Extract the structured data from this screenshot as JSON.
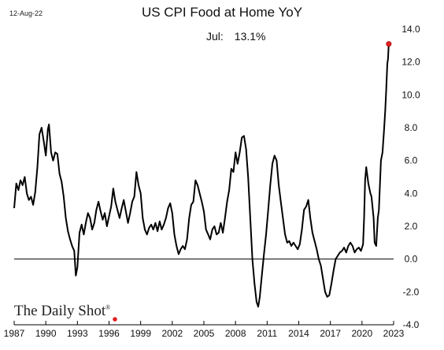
{
  "header": {
    "date": "12-Aug-22",
    "title": "US CPI Food at Home YoY"
  },
  "annotation": {
    "label": "Jul:",
    "value": "13.1%"
  },
  "branding": {
    "name": "The Daily Shot",
    "mark": "®"
  },
  "colors": {
    "line": "#000000",
    "latest_point": "#e02020",
    "zero_line": "#000000"
  },
  "chart_data": {
    "type": "line",
    "title": "US CPI Food at Home YoY",
    "xlabel": "",
    "ylabel": "",
    "xlim": [
      1987,
      2023
    ],
    "ylim": [
      -4.0,
      14.0
    ],
    "x_ticks": [
      "1987",
      "1990",
      "1993",
      "1996",
      "1999",
      "2002",
      "2005",
      "2008",
      "2011",
      "2014",
      "2017",
      "2020",
      "2023"
    ],
    "y_ticks": [
      "14.0",
      "12.0",
      "10.0",
      "8.0",
      "6.0",
      "4.0",
      "2.0",
      "0.0",
      "-2.0",
      "-4.0"
    ],
    "y_axis_position": "right",
    "grid": false,
    "reference_line": 0,
    "latest": {
      "x": 2022.54,
      "y": 13.1
    },
    "series": [
      {
        "values": [
          [
            1987.0,
            3.1
          ],
          [
            1987.2,
            4.6
          ],
          [
            1987.4,
            4.2
          ],
          [
            1987.6,
            4.8
          ],
          [
            1987.8,
            4.5
          ],
          [
            1988.0,
            5.0
          ],
          [
            1988.2,
            4.0
          ],
          [
            1988.4,
            3.6
          ],
          [
            1988.6,
            3.8
          ],
          [
            1988.8,
            3.3
          ],
          [
            1989.0,
            4.1
          ],
          [
            1989.2,
            5.6
          ],
          [
            1989.4,
            7.6
          ],
          [
            1989.6,
            8.0
          ],
          [
            1989.8,
            7.2
          ],
          [
            1990.0,
            6.3
          ],
          [
            1990.2,
            7.9
          ],
          [
            1990.3,
            8.2
          ],
          [
            1990.5,
            6.5
          ],
          [
            1990.7,
            6.0
          ],
          [
            1990.9,
            6.5
          ],
          [
            1991.1,
            6.4
          ],
          [
            1991.3,
            5.2
          ],
          [
            1991.5,
            4.7
          ],
          [
            1991.7,
            3.8
          ],
          [
            1991.9,
            2.5
          ],
          [
            1992.1,
            1.7
          ],
          [
            1992.3,
            1.2
          ],
          [
            1992.5,
            0.8
          ],
          [
            1992.7,
            0.5
          ],
          [
            1992.85,
            -1.0
          ],
          [
            1993.0,
            -0.5
          ],
          [
            1993.2,
            1.6
          ],
          [
            1993.4,
            2.1
          ],
          [
            1993.6,
            1.5
          ],
          [
            1993.8,
            2.2
          ],
          [
            1994.0,
            2.8
          ],
          [
            1994.2,
            2.5
          ],
          [
            1994.4,
            1.8
          ],
          [
            1994.6,
            2.2
          ],
          [
            1994.8,
            3.0
          ],
          [
            1995.0,
            3.5
          ],
          [
            1995.2,
            2.9
          ],
          [
            1995.4,
            2.4
          ],
          [
            1995.6,
            2.8
          ],
          [
            1995.8,
            2.0
          ],
          [
            1996.0,
            2.6
          ],
          [
            1996.2,
            3.2
          ],
          [
            1996.4,
            4.3
          ],
          [
            1996.6,
            3.5
          ],
          [
            1996.8,
            3.0
          ],
          [
            1997.0,
            2.5
          ],
          [
            1997.2,
            3.1
          ],
          [
            1997.4,
            3.6
          ],
          [
            1997.6,
            2.9
          ],
          [
            1997.8,
            2.2
          ],
          [
            1998.0,
            2.8
          ],
          [
            1998.2,
            3.5
          ],
          [
            1998.4,
            3.8
          ],
          [
            1998.6,
            5.3
          ],
          [
            1998.8,
            4.5
          ],
          [
            1999.0,
            4.0
          ],
          [
            1999.2,
            2.5
          ],
          [
            1999.4,
            1.8
          ],
          [
            1999.6,
            1.5
          ],
          [
            1999.8,
            1.9
          ],
          [
            2000.0,
            2.1
          ],
          [
            2000.2,
            1.8
          ],
          [
            2000.4,
            2.2
          ],
          [
            2000.6,
            1.7
          ],
          [
            2000.8,
            2.3
          ],
          [
            2001.0,
            1.8
          ],
          [
            2001.2,
            2.1
          ],
          [
            2001.4,
            2.5
          ],
          [
            2001.6,
            3.1
          ],
          [
            2001.8,
            3.4
          ],
          [
            2002.0,
            2.8
          ],
          [
            2002.2,
            1.5
          ],
          [
            2002.4,
            0.8
          ],
          [
            2002.6,
            0.3
          ],
          [
            2002.8,
            0.6
          ],
          [
            2003.0,
            0.8
          ],
          [
            2003.2,
            0.6
          ],
          [
            2003.4,
            1.2
          ],
          [
            2003.6,
            2.5
          ],
          [
            2003.8,
            3.3
          ],
          [
            2004.0,
            3.5
          ],
          [
            2004.2,
            4.8
          ],
          [
            2004.4,
            4.5
          ],
          [
            2004.6,
            4.0
          ],
          [
            2004.8,
            3.5
          ],
          [
            2005.0,
            2.9
          ],
          [
            2005.2,
            1.8
          ],
          [
            2005.4,
            1.5
          ],
          [
            2005.6,
            1.2
          ],
          [
            2005.8,
            1.8
          ],
          [
            2006.0,
            2.0
          ],
          [
            2006.2,
            1.5
          ],
          [
            2006.4,
            1.6
          ],
          [
            2006.6,
            2.2
          ],
          [
            2006.8,
            1.6
          ],
          [
            2007.0,
            2.5
          ],
          [
            2007.2,
            3.5
          ],
          [
            2007.4,
            4.2
          ],
          [
            2007.6,
            5.5
          ],
          [
            2007.8,
            5.3
          ],
          [
            2008.0,
            6.5
          ],
          [
            2008.2,
            5.8
          ],
          [
            2008.4,
            6.5
          ],
          [
            2008.6,
            7.4
          ],
          [
            2008.8,
            7.5
          ],
          [
            2009.0,
            6.7
          ],
          [
            2009.2,
            5.0
          ],
          [
            2009.4,
            2.5
          ],
          [
            2009.6,
            0.0
          ],
          [
            2009.8,
            -1.5
          ],
          [
            2010.0,
            -2.6
          ],
          [
            2010.15,
            -2.9
          ],
          [
            2010.3,
            -2.3
          ],
          [
            2010.5,
            -1.0
          ],
          [
            2010.7,
            0.3
          ],
          [
            2010.9,
            1.5
          ],
          [
            2011.1,
            3.0
          ],
          [
            2011.3,
            4.5
          ],
          [
            2011.5,
            5.8
          ],
          [
            2011.7,
            6.3
          ],
          [
            2011.9,
            6.0
          ],
          [
            2012.1,
            4.5
          ],
          [
            2012.3,
            3.5
          ],
          [
            2012.5,
            2.5
          ],
          [
            2012.7,
            1.5
          ],
          [
            2012.9,
            1.0
          ],
          [
            2013.1,
            1.1
          ],
          [
            2013.3,
            0.8
          ],
          [
            2013.5,
            1.0
          ],
          [
            2013.7,
            0.8
          ],
          [
            2013.9,
            0.6
          ],
          [
            2014.1,
            0.9
          ],
          [
            2014.3,
            1.8
          ],
          [
            2014.5,
            3.0
          ],
          [
            2014.7,
            3.2
          ],
          [
            2014.9,
            3.6
          ],
          [
            2015.1,
            2.5
          ],
          [
            2015.3,
            1.6
          ],
          [
            2015.5,
            1.1
          ],
          [
            2015.7,
            0.6
          ],
          [
            2015.9,
            0.0
          ],
          [
            2016.1,
            -0.4
          ],
          [
            2016.3,
            -1.2
          ],
          [
            2016.5,
            -2.0
          ],
          [
            2016.7,
            -2.3
          ],
          [
            2016.9,
            -2.2
          ],
          [
            2017.1,
            -1.5
          ],
          [
            2017.3,
            -0.7
          ],
          [
            2017.5,
            0.0
          ],
          [
            2017.7,
            0.2
          ],
          [
            2017.9,
            0.4
          ],
          [
            2018.1,
            0.5
          ],
          [
            2018.3,
            0.7
          ],
          [
            2018.5,
            0.4
          ],
          [
            2018.7,
            0.8
          ],
          [
            2018.9,
            1.0
          ],
          [
            2019.1,
            0.8
          ],
          [
            2019.3,
            0.4
          ],
          [
            2019.5,
            0.6
          ],
          [
            2019.7,
            0.7
          ],
          [
            2019.9,
            0.5
          ],
          [
            2020.1,
            0.9
          ],
          [
            2020.2,
            2.5
          ],
          [
            2020.3,
            4.8
          ],
          [
            2020.4,
            5.6
          ],
          [
            2020.6,
            4.6
          ],
          [
            2020.8,
            4.0
          ],
          [
            2020.9,
            3.8
          ],
          [
            2021.1,
            2.5
          ],
          [
            2021.2,
            1.0
          ],
          [
            2021.35,
            0.8
          ],
          [
            2021.5,
            2.5
          ],
          [
            2021.6,
            3.0
          ],
          [
            2021.7,
            4.5
          ],
          [
            2021.8,
            6.0
          ],
          [
            2021.95,
            6.5
          ],
          [
            2022.1,
            7.9
          ],
          [
            2022.2,
            9.0
          ],
          [
            2022.3,
            10.3
          ],
          [
            2022.4,
            11.9
          ],
          [
            2022.47,
            12.2
          ],
          [
            2022.54,
            13.1
          ]
        ]
      }
    ]
  }
}
